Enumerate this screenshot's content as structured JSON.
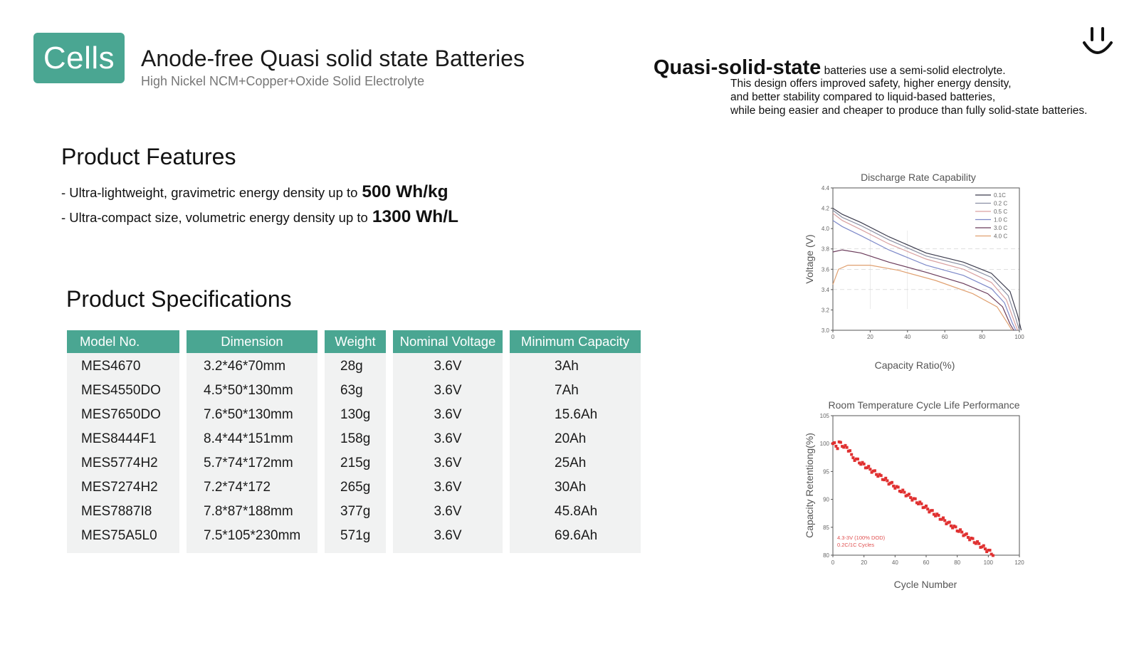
{
  "brand": {
    "badge_label": "Cells",
    "accent_color": "#4aa692",
    "logo_icon": "smile-icon"
  },
  "header": {
    "title": "Anode-free Quasi solid state Batteries",
    "subtitle": "High Nickel NCM+Copper+Oxide Solid Electrolyte"
  },
  "description": {
    "strong": "Quasi-solid-state",
    "lines": [
      "batteries use a semi-solid electrolyte.",
      "This design offers improved safety, higher energy density,",
      "and better stability compared to liquid-based batteries,",
      "while being easier and cheaper to produce than fully solid-state batteries."
    ]
  },
  "features": {
    "heading": "Product Features",
    "items": [
      {
        "text": "- Ultra-lightweight, gravimetric energy density up to",
        "value": "500 Wh/kg"
      },
      {
        "text": "- Ultra-compact size, volumetric energy density up to",
        "value": "1300 Wh/L"
      }
    ]
  },
  "specifications": {
    "heading": "Product Specifications",
    "columns": [
      "Model No.",
      "Dimension",
      "Weight",
      "Nominal Voltage",
      "Minimum Capacity"
    ],
    "rows": [
      [
        "MES4670",
        "3.2*46*70mm",
        "28g",
        "3.6V",
        "3Ah"
      ],
      [
        "MES4550DO",
        "4.5*50*130mm",
        "63g",
        "3.6V",
        "7Ah"
      ],
      [
        "MES7650DO",
        "7.6*50*130mm",
        "130g",
        "3.6V",
        "15.6Ah"
      ],
      [
        "MES8444F1",
        "8.4*44*151mm",
        "158g",
        "3.6V",
        "20Ah"
      ],
      [
        "MES5774H2",
        "5.7*74*172mm",
        "215g",
        "3.6V",
        "25Ah"
      ],
      [
        "MES7274H2",
        "7.2*74*172",
        "265g",
        "3.6V",
        "30Ah"
      ],
      [
        "MES7887I8",
        "7.8*87*188mm",
        "377g",
        "3.6V",
        "45.8Ah"
      ],
      [
        "MES75A5L0",
        "7.5*105*230mm",
        "571g",
        "3.6V",
        "69.6Ah"
      ]
    ]
  },
  "chart_data": [
    {
      "type": "line",
      "title": "Discharge Rate Capability",
      "xlabel": "Capacity Ratio(%)",
      "ylabel": "Voltage (V)",
      "xlim": [
        0,
        100
      ],
      "ylim": [
        3.0,
        4.4
      ],
      "x_ticks": [
        0,
        20,
        40,
        60,
        80,
        100
      ],
      "y_ticks": [
        3.0,
        3.2,
        3.4,
        3.6,
        3.8,
        4.0,
        4.2,
        4.4
      ],
      "legend": "top-right",
      "series": [
        {
          "name": "0.1C",
          "color": "#3c3c4e",
          "points": [
            [
              0,
              4.2
            ],
            [
              5,
              4.14
            ],
            [
              15,
              4.06
            ],
            [
              30,
              3.92
            ],
            [
              50,
              3.76
            ],
            [
              70,
              3.67
            ],
            [
              85,
              3.56
            ],
            [
              95,
              3.38
            ],
            [
              99,
              3.15
            ],
            [
              101,
              3.0
            ]
          ]
        },
        {
          "name": "0.2 C",
          "color": "#8a8fa3",
          "points": [
            [
              0,
              4.18
            ],
            [
              5,
              4.11
            ],
            [
              15,
              4.03
            ],
            [
              30,
              3.89
            ],
            [
              50,
              3.73
            ],
            [
              70,
              3.64
            ],
            [
              85,
              3.52
            ],
            [
              94,
              3.34
            ],
            [
              98,
              3.12
            ],
            [
              100,
              3.0
            ]
          ]
        },
        {
          "name": "0.5 C",
          "color": "#d9a0a0",
          "points": [
            [
              0,
              4.15
            ],
            [
              5,
              4.08
            ],
            [
              15,
              3.99
            ],
            [
              30,
              3.85
            ],
            [
              50,
              3.7
            ],
            [
              70,
              3.6
            ],
            [
              85,
              3.47
            ],
            [
              93,
              3.3
            ],
            [
              97,
              3.1
            ],
            [
              99,
              3.0
            ]
          ]
        },
        {
          "name": "1.0 C",
          "color": "#7d89c9",
          "points": [
            [
              0,
              4.08
            ],
            [
              5,
              4.02
            ],
            [
              15,
              3.93
            ],
            [
              30,
              3.79
            ],
            [
              50,
              3.64
            ],
            [
              70,
              3.54
            ],
            [
              85,
              3.41
            ],
            [
              92,
              3.27
            ],
            [
              96,
              3.08
            ],
            [
              98,
              3.0
            ]
          ]
        },
        {
          "name": "3.0 C",
          "color": "#6a3b5a",
          "points": [
            [
              0,
              3.77
            ],
            [
              5,
              3.79
            ],
            [
              15,
              3.76
            ],
            [
              30,
              3.67
            ],
            [
              50,
              3.57
            ],
            [
              70,
              3.46
            ],
            [
              83,
              3.36
            ],
            [
              91,
              3.23
            ],
            [
              95,
              3.06
            ],
            [
              97,
              3.0
            ]
          ]
        },
        {
          "name": "4.0 C",
          "color": "#e0a070",
          "points": [
            [
              0,
              3.45
            ],
            [
              3,
              3.6
            ],
            [
              8,
              3.64
            ],
            [
              20,
              3.64
            ],
            [
              35,
              3.59
            ],
            [
              55,
              3.49
            ],
            [
              75,
              3.36
            ],
            [
              88,
              3.23
            ],
            [
              94,
              3.06
            ],
            [
              96,
              3.0
            ]
          ]
        }
      ]
    },
    {
      "type": "scatter",
      "title": "Room Temperature Cycle Life Performance",
      "xlabel": "Cycle Number",
      "ylabel": "Capacity  Retentiong(%)",
      "xlim": [
        0,
        120
      ],
      "ylim": [
        80,
        105
      ],
      "x_ticks": [
        0,
        20,
        40,
        60,
        80,
        100,
        120
      ],
      "y_ticks": [
        80,
        85,
        90,
        95,
        100,
        105
      ],
      "annotation": [
        "4.3-3V (100% DOD)",
        "0.2C/1C Cycles"
      ],
      "series": [
        {
          "color": "#e03030",
          "start": [
            0,
            100.0
          ],
          "end": [
            103,
            80.2
          ],
          "count": 104
        }
      ]
    }
  ]
}
